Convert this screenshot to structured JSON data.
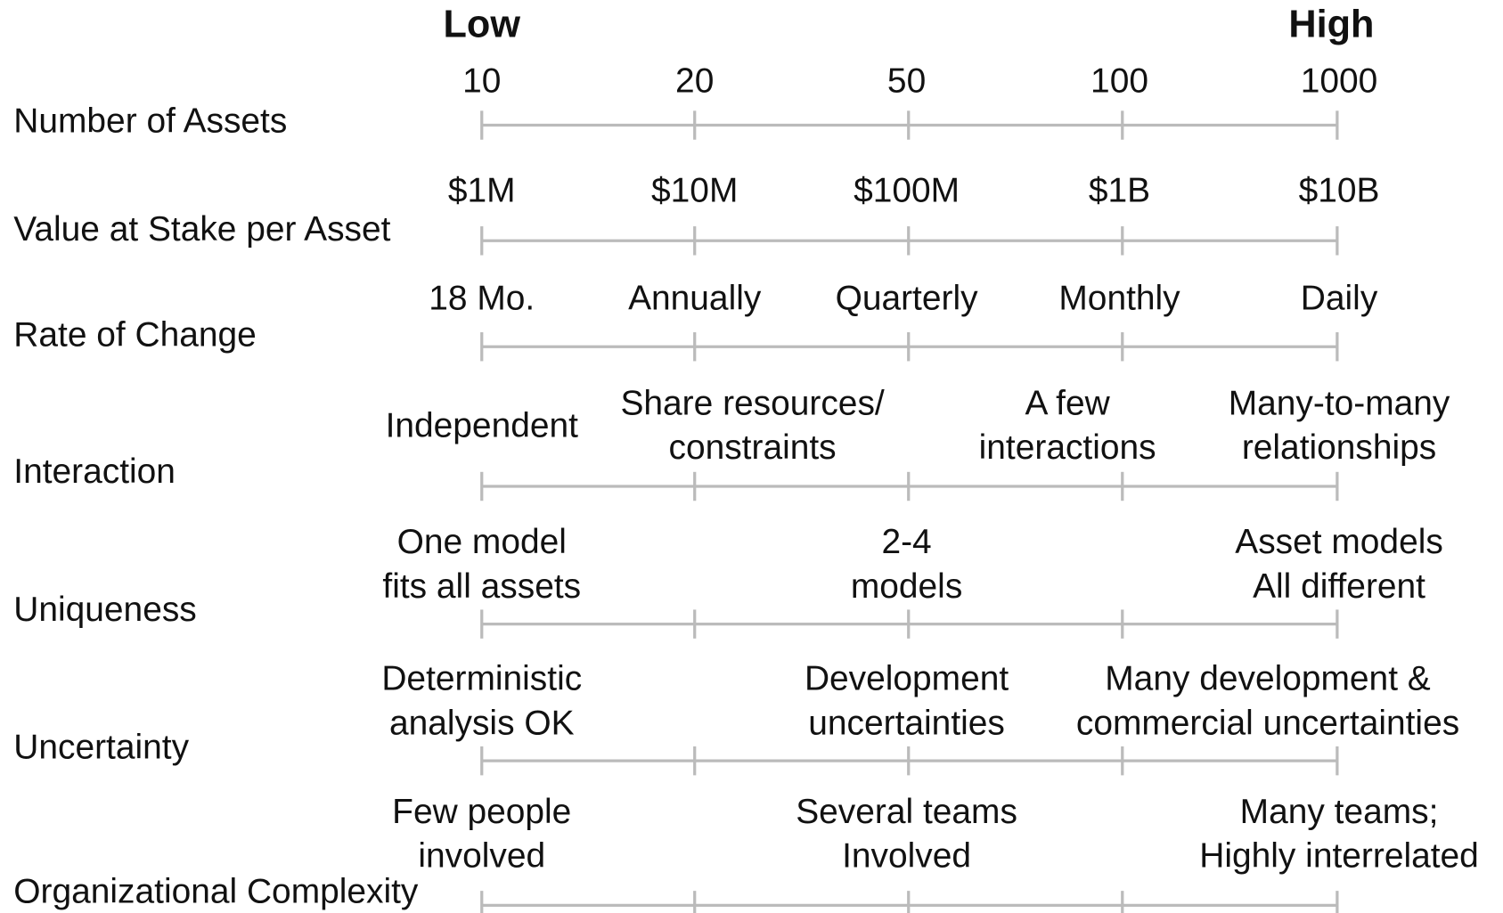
{
  "header": {
    "low": "Low",
    "high": "High"
  },
  "rows": [
    {
      "label": "Number of Assets",
      "ticks": [
        {
          "lines": [
            "10"
          ]
        },
        {
          "lines": [
            "20"
          ]
        },
        {
          "lines": [
            "50"
          ]
        },
        {
          "lines": [
            "100"
          ]
        },
        {
          "lines": [
            "1000"
          ]
        }
      ]
    },
    {
      "label": "Value at Stake per Asset",
      "ticks": [
        {
          "lines": [
            "$1M"
          ]
        },
        {
          "lines": [
            "$10M"
          ]
        },
        {
          "lines": [
            "$100M"
          ]
        },
        {
          "lines": [
            "$1B"
          ]
        },
        {
          "lines": [
            "$10B"
          ]
        }
      ]
    },
    {
      "label": "Rate of Change",
      "ticks": [
        {
          "lines": [
            "18 Mo."
          ]
        },
        {
          "lines": [
            "Annually"
          ]
        },
        {
          "lines": [
            "Quarterly"
          ]
        },
        {
          "lines": [
            "Monthly"
          ]
        },
        {
          "lines": [
            "Daily"
          ]
        }
      ]
    },
    {
      "label": "Interaction",
      "ticks": [
        {
          "lines": [
            "Independent"
          ]
        },
        {
          "lines": [
            "Share resources/",
            "constraints"
          ]
        },
        {
          "lines": [
            "A few",
            "interactions"
          ]
        },
        {
          "lines": [
            "Many-to-many",
            "relationships"
          ]
        }
      ]
    },
    {
      "label": "Uniqueness",
      "ticks": [
        {
          "lines": [
            "One model",
            "fits all assets"
          ]
        },
        {
          "lines": [
            "2-4",
            "models"
          ]
        },
        {
          "lines": [
            "Asset models",
            "All different"
          ]
        }
      ]
    },
    {
      "label": "Uncertainty",
      "ticks": [
        {
          "lines": [
            "Deterministic",
            "analysis OK"
          ]
        },
        {
          "lines": [
            "Development",
            "uncertainties"
          ]
        },
        {
          "lines": [
            "Many development &",
            "commercial uncertainties"
          ]
        }
      ]
    },
    {
      "label": "Organizational Complexity",
      "ticks": [
        {
          "lines": [
            "Few people",
            "involved"
          ]
        },
        {
          "lines": [
            "Several teams",
            "Involved"
          ]
        },
        {
          "lines": [
            "Many teams;",
            "Highly interrelated"
          ]
        }
      ]
    }
  ]
}
